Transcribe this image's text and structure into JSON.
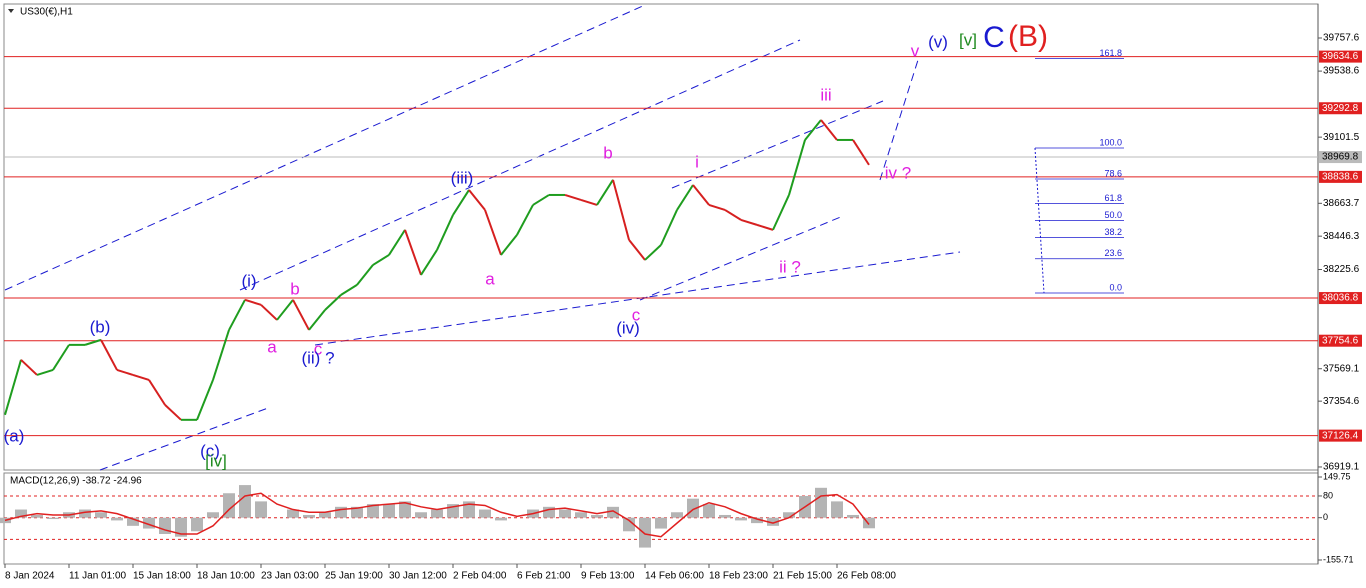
{
  "chart_data": [
    {
      "type": "line",
      "title": "US30(€),H1",
      "categories": [
        "8 Jan 2024",
        null,
        null,
        null,
        "11 Jan 01:00",
        null,
        null,
        null,
        "15 Jan 18:00",
        null,
        null,
        null,
        "18 Jan 10:00",
        null,
        null,
        null,
        "23 Jan 03:00",
        null,
        null,
        null,
        "25 Jan 19:00",
        null,
        null,
        null,
        "30 Jan 12:00",
        null,
        null,
        null,
        "2 Feb 04:00",
        null,
        null,
        null,
        "6 Feb 21:00",
        null,
        null,
        null,
        "9 Feb 13:00",
        null,
        null,
        null,
        "14 Feb 06:00",
        null,
        null,
        null,
        "18 Feb 23:00",
        null,
        null,
        null,
        "21 Feb 15:00",
        null,
        null,
        null,
        "26 Feb 08:00",
        null,
        null
      ],
      "values": [
        37264,
        37628,
        37528,
        37561,
        37727,
        37727,
        37760,
        37561,
        37528,
        37495,
        37330,
        37231,
        37231,
        37495,
        37826,
        38025,
        37992,
        37892,
        38025,
        37826,
        37958,
        38058,
        38124,
        38256,
        38322,
        38488,
        38190,
        38355,
        38587,
        38752,
        38620,
        38322,
        38455,
        38653,
        38719,
        38719,
        38686,
        38653,
        38819,
        38422,
        38289,
        38388,
        38620,
        38785,
        38653,
        38620,
        38554,
        38521,
        38488,
        38719,
        39083,
        39215,
        39083,
        39083,
        38918
      ],
      "up_color": "#1f9d1f",
      "down_color": "#d62020",
      "ylim": [
        36899,
        39976
      ],
      "yticks": [
        39757.6,
        39538.6,
        39101.5,
        38663.7,
        38446.3,
        38225.6,
        37569.1,
        37354.6,
        36919.1
      ],
      "hlines": [
        39634.6,
        39292.8,
        38838.6,
        38036.8,
        37754.6,
        37126.4
      ],
      "hline_color": "#e02020",
      "current_price": 38969.8,
      "fib_levels": [
        {
          "value": 161.8,
          "label": "161.8"
        },
        {
          "value": 100,
          "label": "100.0"
        },
        {
          "value": 78.6,
          "label": "78.6"
        },
        {
          "value": 61.8,
          "label": "61.8"
        },
        {
          "value": 50,
          "label": "50.0"
        },
        {
          "value": 38.2,
          "label": "38.2"
        },
        {
          "value": 23.6,
          "label": "23.6"
        },
        {
          "value": 0,
          "label": "0.0"
        }
      ],
      "annotations": [
        {
          "text": "(a)",
          "color": "#1a1ad0"
        },
        {
          "text": "(b)",
          "color": "#1a1ad0"
        },
        {
          "text": "(c)",
          "color": "#1a1ad0"
        },
        {
          "text": "[iv]",
          "color": "#1f8a1f"
        },
        {
          "text": "(i)",
          "color": "#1a1ad0"
        },
        {
          "text": "a",
          "color": "#e020e0"
        },
        {
          "text": "b",
          "color": "#e020e0"
        },
        {
          "text": "c",
          "color": "#e020e0"
        },
        {
          "text": "(ii) ?",
          "color": "#1a1ad0"
        },
        {
          "text": "a",
          "color": "#e020e0"
        },
        {
          "text": "(iii)",
          "color": "#1a1ad0"
        },
        {
          "text": "b",
          "color": "#e020e0"
        },
        {
          "text": "c",
          "color": "#e020e0"
        },
        {
          "text": "(iv)",
          "color": "#1a1ad0"
        },
        {
          "text": "i",
          "color": "#e020e0"
        },
        {
          "text": "ii ?",
          "color": "#e020e0"
        },
        {
          "text": "iii",
          "color": "#e020e0"
        },
        {
          "text": "iv ?",
          "color": "#e020e0"
        },
        {
          "text": "v",
          "color": "#e020e0"
        },
        {
          "text": "(v)",
          "color": "#1a1ad0"
        },
        {
          "text": "[v]",
          "color": "#1f8a1f"
        },
        {
          "text": "C",
          "color": "#1a1ad0"
        },
        {
          "text": "(B)",
          "color": "#e02020"
        }
      ]
    },
    {
      "type": "bar",
      "title": "MACD(12,26,9) -38.72 -24.96",
      "values": [
        -20,
        30,
        10,
        -5,
        20,
        30,
        20,
        -10,
        -30,
        -40,
        -60,
        -70,
        -50,
        20,
        90,
        120,
        60,
        0,
        30,
        10,
        20,
        40,
        40,
        50,
        50,
        60,
        20,
        30,
        50,
        60,
        30,
        -10,
        0,
        30,
        40,
        30,
        20,
        10,
        40,
        -50,
        -110,
        -40,
        20,
        70,
        50,
        10,
        -10,
        -20,
        -30,
        20,
        80,
        110,
        60,
        10,
        -39
      ],
      "signal": [
        -10,
        5,
        15,
        10,
        10,
        20,
        25,
        15,
        -5,
        -25,
        -45,
        -60,
        -60,
        -30,
        30,
        80,
        90,
        50,
        30,
        20,
        20,
        30,
        35,
        45,
        50,
        55,
        40,
        30,
        40,
        50,
        45,
        20,
        5,
        15,
        30,
        35,
        25,
        15,
        25,
        -10,
        -60,
        -70,
        -20,
        30,
        55,
        40,
        15,
        -5,
        -20,
        0,
        40,
        80,
        85,
        50,
        -25
      ],
      "color": "#b4b4b4",
      "signal_color": "#e02020",
      "ylim": [
        -155.71,
        149.75
      ],
      "yticks": [
        149.75,
        80,
        0,
        -155.71
      ],
      "levels": [
        80,
        0,
        -80
      ]
    }
  ]
}
